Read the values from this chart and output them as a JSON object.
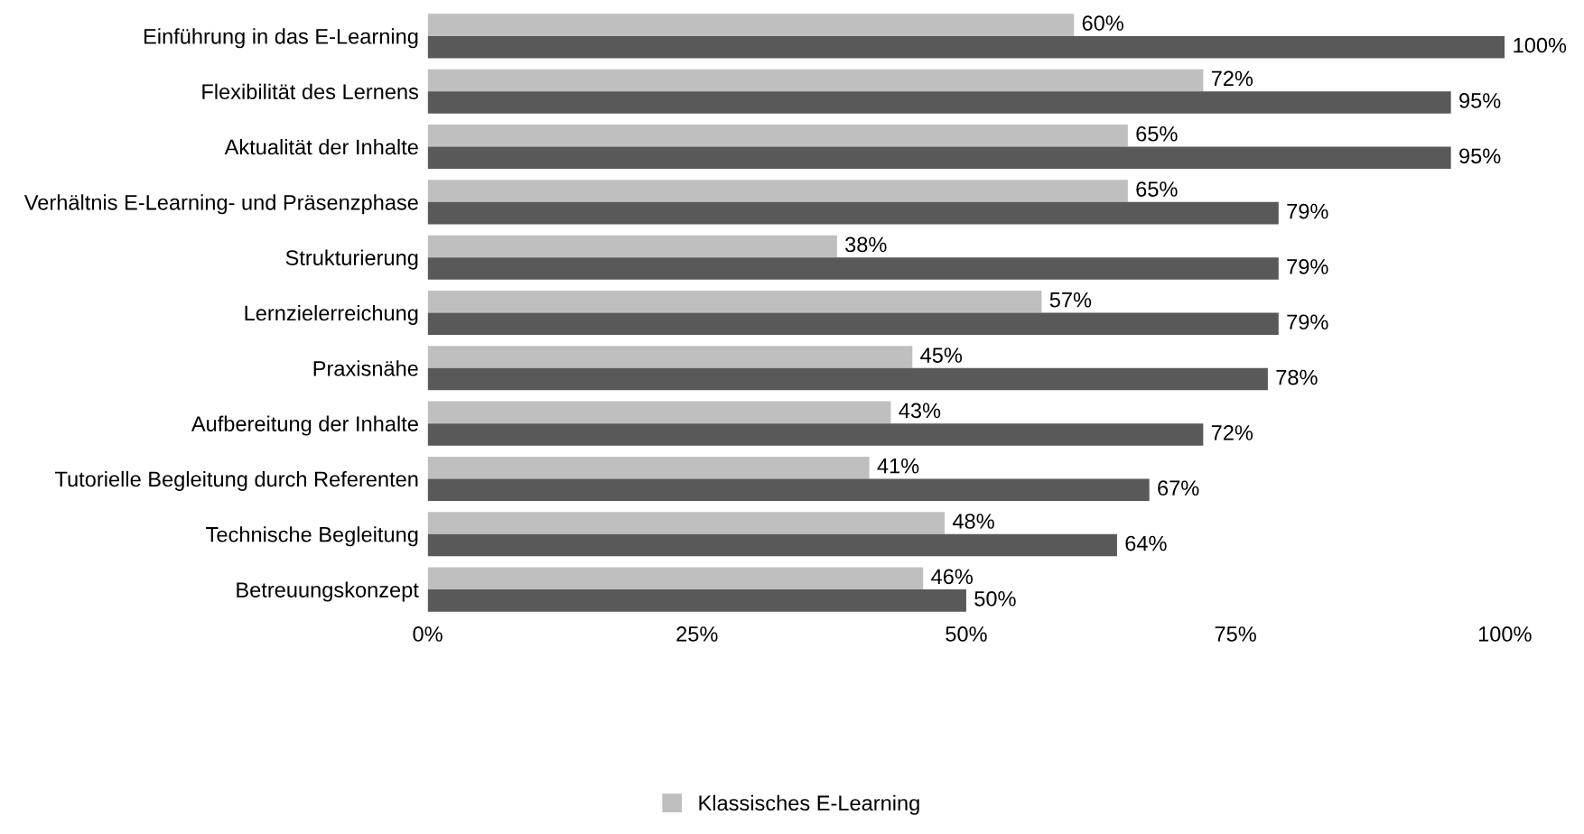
{
  "chart_data": {
    "type": "bar",
    "orientation": "horizontal",
    "categories": [
      "Einführung in das E-Learning",
      "Flexibilität des Lernens",
      "Aktualität der Inhalte",
      "Verhältnis E-Learning- und Präsenzphase",
      "Strukturierung",
      "Lernzielerreichung",
      "Praxisnähe",
      "Aufbereitung der Inhalte",
      "Tutorielle Begleitung durch Referenten",
      "Technische Begleitung",
      "Betreuungskonzept"
    ],
    "series": [
      {
        "name": "Klassisches E-Learning",
        "color": "#bfbfbf",
        "values": [
          60,
          72,
          65,
          65,
          38,
          57,
          45,
          43,
          41,
          48,
          46
        ],
        "value_labels": [
          "60%",
          "72%",
          "65%",
          "65%",
          "38%",
          "57%",
          "45%",
          "43%",
          "41%",
          "48%",
          "46%"
        ]
      },
      {
        "color": "#595959",
        "values": [
          100,
          95,
          95,
          79,
          79,
          79,
          78,
          72,
          67,
          64,
          50
        ],
        "value_labels": [
          "100%",
          "95%",
          "95%",
          "79%",
          "79%",
          "79%",
          "78%",
          "72%",
          "67%",
          "64%",
          "50%"
        ]
      }
    ],
    "xlim": [
      0,
      100
    ],
    "xticks": [
      {
        "value": 0,
        "label": "0%"
      },
      {
        "value": 25,
        "label": "25%"
      },
      {
        "value": 50,
        "label": "50%"
      },
      {
        "value": 75,
        "label": "75%"
      },
      {
        "value": 100,
        "label": "100%"
      }
    ],
    "grid": false,
    "legend": "bottom"
  }
}
